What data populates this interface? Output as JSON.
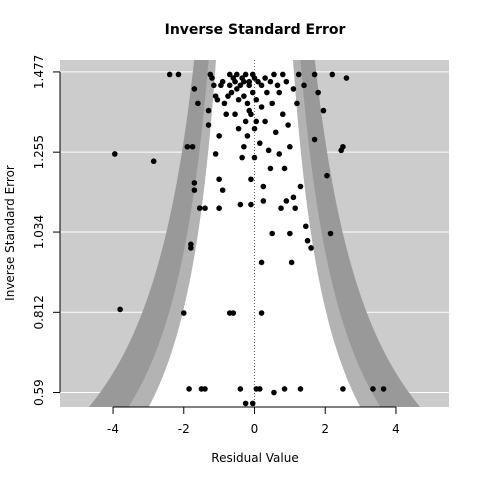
{
  "chart_data": {
    "type": "scatter",
    "title": "Inverse Standard Error",
    "xlabel": "Residual Value",
    "ylabel": "Inverse Standard Error",
    "xlim": [
      -5.5,
      5.5
    ],
    "ylim": [
      0.55,
      1.51
    ],
    "x_ticks": [
      -4,
      -2,
      0,
      2,
      4
    ],
    "x_tick_labels": [
      "-4",
      "-2",
      "0",
      "2",
      "4"
    ],
    "y_ticks": [
      0.59,
      0.812,
      1.034,
      1.255,
      1.477
    ],
    "y_tick_labels": [
      "0.59",
      "0.812",
      "1.034",
      "1.255",
      "1.477"
    ],
    "grid": true,
    "colors": {
      "panel_background": "#cccccc",
      "outer_band": "#999999",
      "middle_band": "#b3b3b3",
      "inner_region": "#ffffff",
      "points": "#000000",
      "gridlines": "#ffffff"
    },
    "contour_multipliers": [
      1.645,
      1.96,
      2.576
    ],
    "reference_line_x": 0,
    "points": [
      [
        -3.95,
        1.25
      ],
      [
        -3.8,
        0.82
      ],
      [
        -2.85,
        1.23
      ],
      [
        -2.4,
        1.47
      ],
      [
        -2.15,
        1.47
      ],
      [
        -2.0,
        0.81
      ],
      [
        -1.9,
        1.27
      ],
      [
        -1.85,
        0.6
      ],
      [
        -1.8,
        0.99
      ],
      [
        -1.8,
        1.0
      ],
      [
        -1.75,
        1.27
      ],
      [
        -1.7,
        1.15
      ],
      [
        -1.7,
        1.17
      ],
      [
        -1.7,
        1.43
      ],
      [
        -1.6,
        1.39
      ],
      [
        -1.55,
        1.1
      ],
      [
        -1.5,
        0.6
      ],
      [
        -1.4,
        0.6
      ],
      [
        -1.4,
        1.1
      ],
      [
        -1.3,
        1.33
      ],
      [
        -1.3,
        1.37
      ],
      [
        -1.25,
        1.47
      ],
      [
        -1.2,
        1.46
      ],
      [
        -1.15,
        1.44
      ],
      [
        -1.1,
        1.41
      ],
      [
        -1.1,
        1.25
      ],
      [
        -1.05,
        1.4
      ],
      [
        -1.0,
        1.3
      ],
      [
        -1.0,
        1.18
      ],
      [
        -1.0,
        1.1
      ],
      [
        -0.95,
        1.44
      ],
      [
        -0.9,
        1.15
      ],
      [
        -0.9,
        1.45
      ],
      [
        -0.85,
        1.39
      ],
      [
        -0.8,
        1.36
      ],
      [
        -0.75,
        1.41
      ],
      [
        -0.7,
        0.81
      ],
      [
        -0.7,
        1.47
      ],
      [
        -0.7,
        1.44
      ],
      [
        -0.65,
        1.42
      ],
      [
        -0.6,
        0.81
      ],
      [
        -0.6,
        1.46
      ],
      [
        -0.55,
        1.36
      ],
      [
        -0.55,
        1.45
      ],
      [
        -0.5,
        1.47
      ],
      [
        -0.5,
        1.43
      ],
      [
        -0.45,
        1.32
      ],
      [
        -0.45,
        1.4
      ],
      [
        -0.4,
        1.11
      ],
      [
        -0.4,
        0.6
      ],
      [
        -0.4,
        1.44
      ],
      [
        -0.35,
        1.24
      ],
      [
        -0.35,
        1.46
      ],
      [
        -0.3,
        1.27
      ],
      [
        -0.3,
        1.45
      ],
      [
        -0.3,
        1.41
      ],
      [
        -0.25,
        1.34
      ],
      [
        -0.25,
        1.47
      ],
      [
        -0.25,
        0.56
      ],
      [
        -0.2,
        1.3
      ],
      [
        -0.2,
        1.39
      ],
      [
        -0.15,
        1.37
      ],
      [
        -0.15,
        1.45
      ],
      [
        -0.15,
        1.44
      ],
      [
        -0.1,
        1.36
      ],
      [
        -0.1,
        1.18
      ],
      [
        -0.1,
        1.11
      ],
      [
        -0.05,
        1.47
      ],
      [
        -0.05,
        1.42
      ],
      [
        -0.05,
        0.56
      ],
      [
        0.0,
        1.46
      ],
      [
        0.0,
        1.24
      ],
      [
        0.0,
        1.32
      ],
      [
        0.05,
        0.6
      ],
      [
        0.05,
        1.4
      ],
      [
        0.05,
        1.34
      ],
      [
        0.1,
        1.45
      ],
      [
        0.15,
        0.6
      ],
      [
        0.15,
        1.28
      ],
      [
        0.2,
        1.44
      ],
      [
        0.2,
        1.38
      ],
      [
        0.2,
        0.81
      ],
      [
        0.2,
        0.95
      ],
      [
        0.25,
        1.16
      ],
      [
        0.25,
        1.12
      ],
      [
        0.3,
        1.46
      ],
      [
        0.3,
        1.34
      ],
      [
        0.35,
        1.42
      ],
      [
        0.4,
        1.26
      ],
      [
        0.45,
        1.45
      ],
      [
        0.45,
        1.21
      ],
      [
        0.5,
        1.39
      ],
      [
        0.5,
        1.03
      ],
      [
        0.55,
        1.47
      ],
      [
        0.55,
        0.59
      ],
      [
        0.6,
        1.31
      ],
      [
        0.65,
        1.44
      ],
      [
        0.7,
        1.42
      ],
      [
        0.7,
        1.25
      ],
      [
        0.75,
        1.1
      ],
      [
        0.8,
        1.36
      ],
      [
        0.8,
        1.47
      ],
      [
        0.85,
        0.6
      ],
      [
        0.85,
        1.21
      ],
      [
        0.9,
        1.45
      ],
      [
        0.9,
        1.12
      ],
      [
        0.95,
        1.33
      ],
      [
        1.0,
        1.27
      ],
      [
        1.0,
        1.03
      ],
      [
        1.05,
        0.95
      ],
      [
        1.1,
        1.43
      ],
      [
        1.1,
        1.13
      ],
      [
        1.15,
        1.1
      ],
      [
        1.2,
        1.39
      ],
      [
        1.25,
        1.47
      ],
      [
        1.3,
        0.6
      ],
      [
        1.3,
        1.16
      ],
      [
        1.4,
        1.44
      ],
      [
        1.45,
        1.05
      ],
      [
        1.5,
        1.01
      ],
      [
        1.6,
        0.99
      ],
      [
        1.7,
        1.29
      ],
      [
        1.7,
        1.47
      ],
      [
        1.8,
        1.42
      ],
      [
        1.95,
        1.37
      ],
      [
        2.05,
        1.19
      ],
      [
        2.15,
        1.03
      ],
      [
        2.2,
        1.47
      ],
      [
        2.45,
        1.26
      ],
      [
        2.5,
        1.27
      ],
      [
        2.6,
        1.46
      ],
      [
        2.5,
        0.6
      ],
      [
        3.35,
        0.6
      ],
      [
        3.65,
        0.6
      ]
    ]
  }
}
